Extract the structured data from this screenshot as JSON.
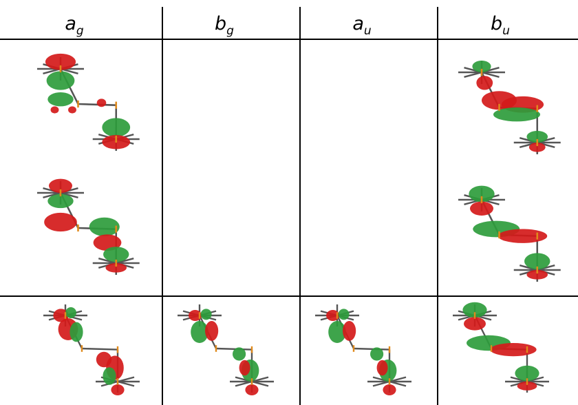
{
  "table": {
    "headers": [
      {
        "main": "a",
        "sub": "g"
      },
      {
        "main": "b",
        "sub": "g"
      },
      {
        "main": "a",
        "sub": "u"
      },
      {
        "main": "b",
        "sub": "u"
      }
    ]
  }
}
